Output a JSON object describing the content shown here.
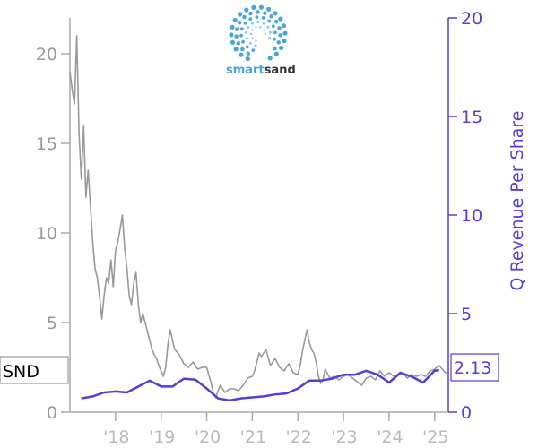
{
  "logo": {
    "word_light": "smart",
    "word_dark": "sand",
    "color_light": "#4aa6d9",
    "color_dark": "#333333"
  },
  "ticker": {
    "label": "SND"
  },
  "last_value": {
    "label": "2.13"
  },
  "colors": {
    "price": "#999999",
    "revenue": "#5b3bd6",
    "left_axis": "#aaaaaa",
    "right_axis": "#5b3bd6"
  },
  "chart_data": {
    "type": "line",
    "title": "",
    "xlabel": "",
    "ylabel_left": "",
    "ylabel_right": "Q Revenue Per Share",
    "x_range": [
      2017.0,
      2025.3
    ],
    "y_left_range": [
      0,
      22
    ],
    "y_right_range": [
      0,
      20
    ],
    "x_ticks": [
      {
        "label": "'18",
        "value": 2018
      },
      {
        "label": "'19",
        "value": 2019
      },
      {
        "label": "'20",
        "value": 2020
      },
      {
        "label": "'21",
        "value": 2021
      },
      {
        "label": "'22",
        "value": 2022
      },
      {
        "label": "'23",
        "value": 2023
      },
      {
        "label": "'24",
        "value": 2024
      },
      {
        "label": "'25",
        "value": 2025
      }
    ],
    "y_left_ticks": [
      {
        "label": "0",
        "value": 0
      },
      {
        "label": "5",
        "value": 5
      },
      {
        "label": "10",
        "value": 10
      },
      {
        "label": "15",
        "value": 15
      },
      {
        "label": "20",
        "value": 20
      }
    ],
    "y_right_ticks": [
      {
        "label": "0",
        "value": 0
      },
      {
        "label": "5",
        "value": 5
      },
      {
        "label": "10",
        "value": 10
      },
      {
        "label": "15",
        "value": 15
      },
      {
        "label": "20",
        "value": 20
      }
    ],
    "series": [
      {
        "name": "SND",
        "axis": "left",
        "x": [
          2017.0,
          2017.05,
          2017.1,
          2017.15,
          2017.2,
          2017.25,
          2017.3,
          2017.35,
          2017.4,
          2017.45,
          2017.5,
          2017.55,
          2017.6,
          2017.65,
          2017.7,
          2017.75,
          2017.8,
          2017.85,
          2017.9,
          2017.95,
          2018.0,
          2018.05,
          2018.1,
          2018.15,
          2018.2,
          2018.25,
          2018.3,
          2018.35,
          2018.4,
          2018.45,
          2018.5,
          2018.55,
          2018.6,
          2018.65,
          2018.7,
          2018.75,
          2018.8,
          2018.85,
          2018.9,
          2018.95,
          2019.0,
          2019.05,
          2019.1,
          2019.15,
          2019.2,
          2019.25,
          2019.3,
          2019.4,
          2019.5,
          2019.6,
          2019.7,
          2019.8,
          2019.9,
          2020.0,
          2020.1,
          2020.15,
          2020.2,
          2020.25,
          2020.3,
          2020.4,
          2020.5,
          2020.6,
          2020.7,
          2020.8,
          2020.9,
          2021.0,
          2021.05,
          2021.1,
          2021.15,
          2021.2,
          2021.3,
          2021.4,
          2021.5,
          2021.6,
          2021.7,
          2021.8,
          2021.9,
          2022.0,
          2022.05,
          2022.1,
          2022.15,
          2022.2,
          2022.25,
          2022.3,
          2022.35,
          2022.4,
          2022.45,
          2022.5,
          2022.55,
          2022.6,
          2022.7,
          2022.8,
          2022.9,
          2023.0,
          2023.1,
          2023.2,
          2023.3,
          2023.4,
          2023.5,
          2023.6,
          2023.7,
          2023.8,
          2023.9,
          2024.0,
          2024.1,
          2024.2,
          2024.3,
          2024.4,
          2024.5,
          2024.6,
          2024.7,
          2024.8,
          2024.9,
          2025.0,
          2025.1,
          2025.2,
          2025.3
        ],
        "y": [
          19.0,
          18.0,
          17.2,
          21.0,
          15.5,
          13.0,
          16.0,
          12.0,
          13.5,
          11.5,
          9.5,
          8.0,
          7.5,
          6.5,
          5.2,
          6.5,
          7.5,
          7.2,
          8.5,
          7.0,
          9.0,
          9.5,
          10.2,
          11.0,
          9.2,
          8.0,
          6.5,
          6.0,
          7.2,
          7.8,
          6.0,
          5.0,
          5.5,
          5.0,
          4.5,
          4.0,
          3.5,
          3.2,
          3.0,
          2.6,
          2.3,
          2.0,
          2.5,
          3.8,
          4.6,
          4.0,
          3.5,
          3.2,
          2.7,
          2.5,
          2.8,
          2.4,
          2.5,
          2.5,
          1.6,
          1.0,
          0.8,
          1.2,
          1.5,
          1.1,
          1.3,
          1.3,
          1.2,
          1.5,
          1.9,
          2.0,
          2.3,
          2.8,
          3.3,
          3.1,
          3.5,
          2.6,
          3.0,
          2.5,
          2.3,
          2.7,
          2.2,
          2.1,
          2.6,
          3.4,
          4.0,
          4.6,
          3.9,
          3.5,
          3.3,
          2.8,
          2.0,
          1.6,
          1.8,
          2.4,
          1.9,
          2.0,
          1.8,
          2.0,
          2.1,
          1.9,
          1.7,
          1.5,
          1.9,
          2.0,
          1.8,
          2.3,
          2.0,
          2.2,
          2.0,
          2.1,
          2.2,
          1.9,
          2.1,
          2.0,
          2.1,
          2.0,
          2.3,
          2.4,
          2.6,
          2.3,
          2.1
        ]
      },
      {
        "name": "Q Revenue Per Share",
        "axis": "right",
        "x": [
          2017.25,
          2017.5,
          2017.75,
          2018.0,
          2018.25,
          2018.5,
          2018.75,
          2019.0,
          2019.25,
          2019.5,
          2019.75,
          2020.0,
          2020.25,
          2020.5,
          2020.75,
          2021.0,
          2021.25,
          2021.5,
          2021.75,
          2022.0,
          2022.25,
          2022.5,
          2022.75,
          2023.0,
          2023.25,
          2023.5,
          2023.75,
          2024.0,
          2024.25,
          2024.5,
          2024.75,
          2025.0,
          2025.1
        ],
        "y": [
          0.7,
          0.8,
          1.0,
          1.05,
          1.0,
          1.3,
          1.6,
          1.3,
          1.3,
          1.7,
          1.65,
          1.2,
          0.7,
          0.6,
          0.7,
          0.75,
          0.8,
          0.9,
          0.95,
          1.2,
          1.6,
          1.6,
          1.7,
          1.9,
          1.9,
          2.1,
          1.9,
          1.5,
          2.0,
          1.8,
          1.5,
          2.1,
          2.13
        ]
      }
    ]
  }
}
